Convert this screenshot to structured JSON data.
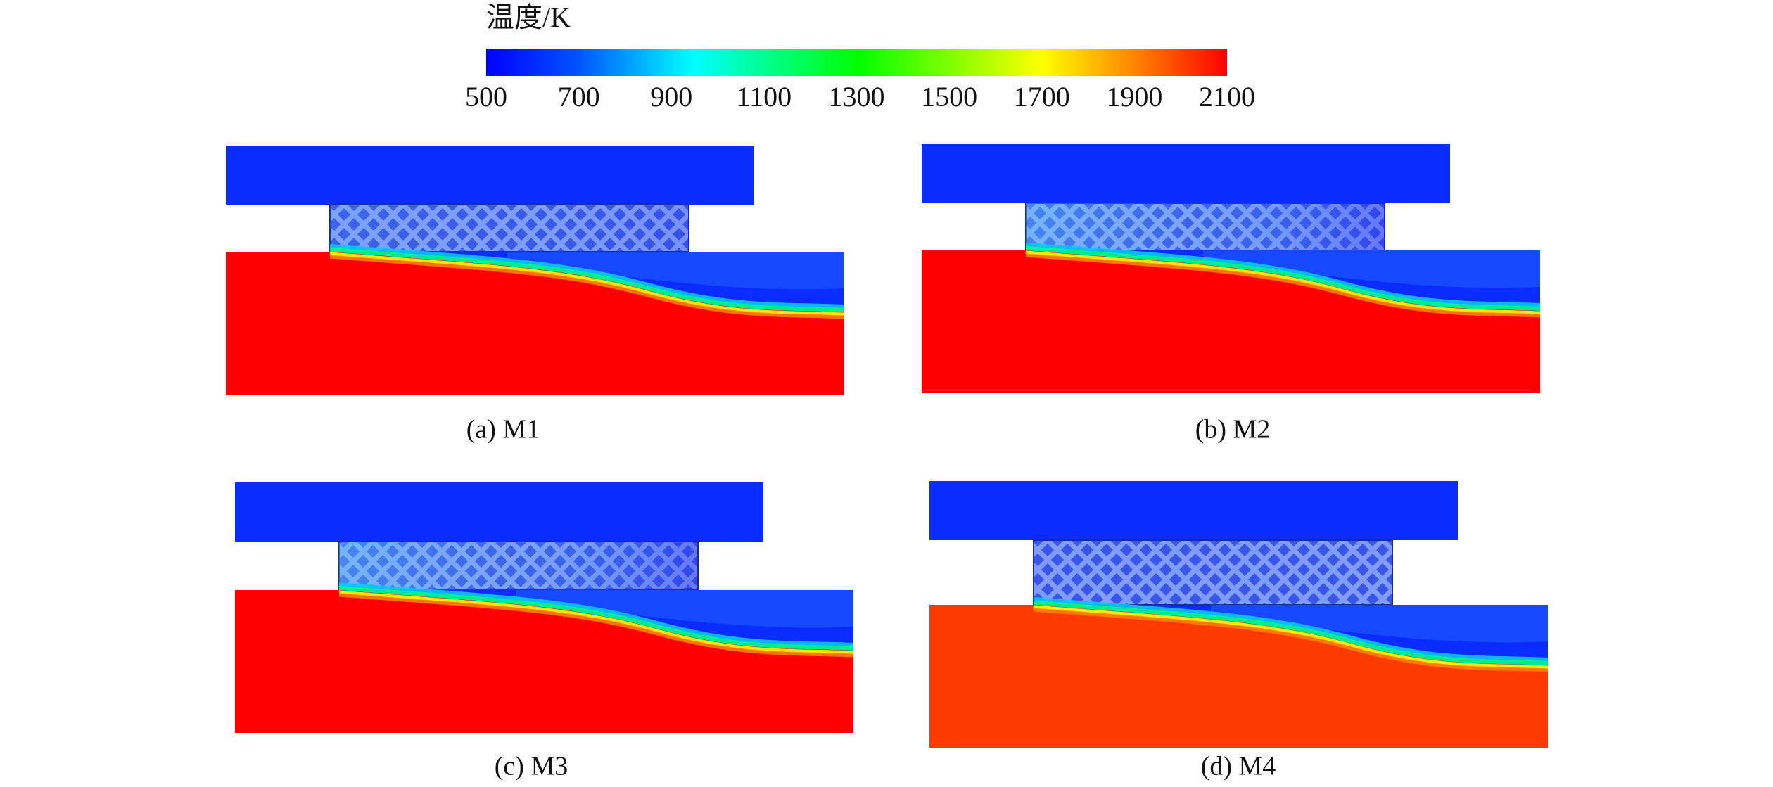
{
  "colorbar": {
    "title": "温度/K",
    "ticks": [
      500,
      700,
      900,
      1100,
      1300,
      1500,
      1700,
      1900,
      2100
    ]
  },
  "panels": [
    {
      "caption": "(a) M1"
    },
    {
      "caption": "(b) M2"
    },
    {
      "caption": "(c) M3"
    },
    {
      "caption": "(d) M4"
    }
  ]
}
